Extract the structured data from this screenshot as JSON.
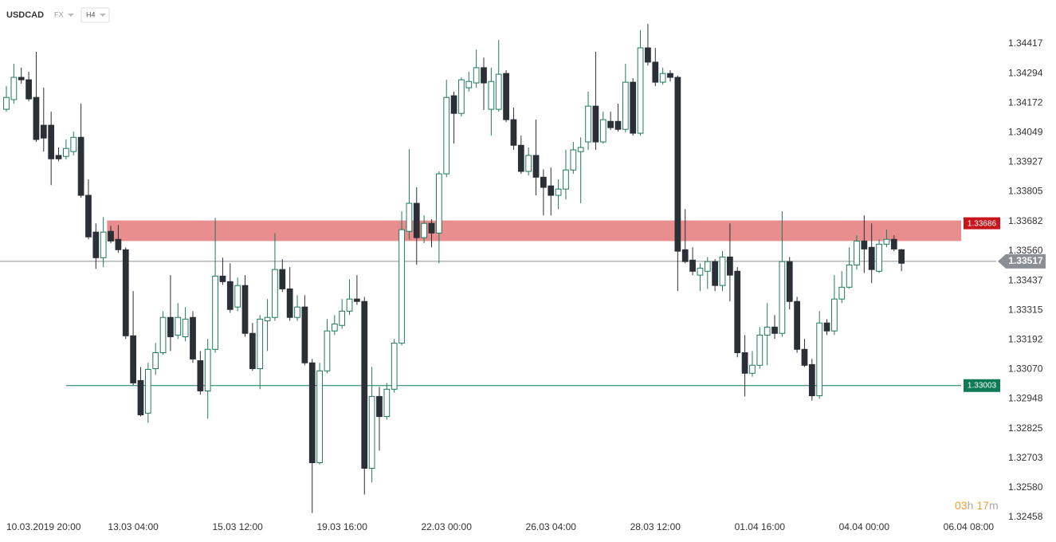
{
  "header": {
    "symbol": "USDCAD",
    "market": "FX",
    "timeframe": "H4"
  },
  "timer": {
    "hours": "03",
    "hours_unit": "h",
    "minutes": "17",
    "minutes_unit": "m"
  },
  "chart_data": {
    "type": "candlestick",
    "bull_color": "#1f7a5c",
    "bear_color": "#2b2f36",
    "xlim": [
      -0.855,
      132.7
    ],
    "xticks": [
      {
        "value": 3,
        "label": "10.03.2019  20:00"
      },
      {
        "value": 17,
        "label": "13.03  04:00"
      },
      {
        "value": 31,
        "label": "15.03  12:00"
      },
      {
        "value": 45,
        "label": "19.03  16:00"
      },
      {
        "value": 59,
        "label": "22.03  00:00"
      },
      {
        "value": 73,
        "label": "26.03  04:00"
      },
      {
        "value": 87,
        "label": "28.03  12:00"
      },
      {
        "value": 101,
        "label": "01.04  16:00"
      },
      {
        "value": 115,
        "label": "04.04  00:00"
      },
      {
        "value": 129,
        "label": "06.04  08:00"
      }
    ],
    "ylim": [
      1.32356,
      1.34598
    ],
    "yticks": [
      1.34417,
      1.34294,
      1.34172,
      1.34049,
      1.33927,
      1.33805,
      1.33682,
      {
        "value": 1.3356,
        "label": "1.33560"
      },
      1.33437,
      1.33315,
      1.33192,
      {
        "value": 1.3307,
        "label": "1.33070"
      },
      1.32948,
      1.32825,
      1.32703,
      {
        "value": 1.3258,
        "label": "1.32580"
      },
      1.32458
    ],
    "grid": false,
    "open": [
      1.34146,
      1.34186,
      1.34278,
      1.34268,
      1.34195,
      1.3408,
      1.3408,
      1.33955,
      1.33951,
      1.33971,
      1.3403,
      1.3379,
      1.33638,
      1.33532,
      1.33641,
      1.33608,
      1.33565,
      1.33209,
      1.33024,
      1.32889,
      1.33073,
      1.33139,
      1.33285,
      1.33212,
      1.33205,
      1.33285,
      1.33106,
      1.32981,
      1.33153,
      1.33456,
      1.33433,
      1.33328,
      1.33417,
      1.33219,
      1.33073,
      1.33271,
      1.33285,
      1.33483,
      1.33403,
      1.33285,
      1.33328,
      1.33097,
      1.32684,
      1.33064,
      1.33229,
      1.33252,
      1.33311,
      1.33361,
      1.33351,
      1.32661,
      1.32958,
      1.32875,
      1.32988,
      1.33179,
      1.33641,
      1.33757,
      1.33615,
      1.33674,
      1.33634,
      1.33879,
      1.34202,
      1.34129,
      1.34235,
      1.34255,
      1.34318,
      1.34146,
      1.34146,
      1.34294,
      1.34103,
      1.33997,
      1.33889,
      1.33955,
      1.33865,
      1.33829,
      1.3379,
      1.33816,
      1.33895,
      1.33971,
      1.34011,
      1.34159,
      1.34011,
      1.34096,
      1.34096,
      1.34063,
      1.34258,
      1.34047,
      1.344,
      1.34341,
      1.34258,
      1.34294,
      1.34278,
      1.33565,
      1.33522,
      1.3346,
      1.33476,
      1.33516,
      1.33417,
      1.33535,
      1.33476,
      1.33139,
      1.33054,
      1.33087,
      1.33212,
      1.33245,
      1.33219,
      1.33516,
      1.33351,
      1.33153,
      1.3309,
      1.32961,
      1.33262,
      1.33229,
      1.33361,
      1.3341,
      1.33502,
      1.33601,
      1.33575,
      1.33476,
      1.33588,
      1.33608,
      1.33565
    ],
    "high": [
      1.34242,
      1.34334,
      1.34318,
      1.34301,
      1.34384,
      1.34235,
      1.34136,
      1.33988,
      1.34021,
      1.34054,
      1.34169,
      1.33856,
      1.33674,
      1.337,
      1.33664,
      1.33667,
      1.33575,
      1.33394,
      1.3308,
      1.33097,
      1.33179,
      1.33311,
      1.3346,
      1.33344,
      1.33328,
      1.33311,
      1.33146,
      1.33196,
      1.33697,
      1.33532,
      1.33509,
      1.3345,
      1.3346,
      1.33262,
      1.33295,
      1.33361,
      1.33634,
      1.33526,
      1.33493,
      1.33377,
      1.33377,
      1.33113,
      1.33097,
      1.33278,
      1.33295,
      1.33361,
      1.33443,
      1.3346,
      1.3337,
      1.3308,
      1.32998,
      1.33014,
      1.33196,
      1.33724,
      1.33981,
      1.33823,
      1.33707,
      1.33691,
      1.33889,
      1.34268,
      1.34219,
      1.34278,
      1.34301,
      1.34393,
      1.3436,
      1.34318,
      1.34433,
      1.34308,
      1.34153,
      1.34037,
      1.33988,
      1.34103,
      1.33898,
      1.33905,
      1.33856,
      1.33978,
      1.34011,
      1.3403,
      1.34219,
      1.34384,
      1.34136,
      1.34136,
      1.34169,
      1.34334,
      1.34275,
      1.34473,
      1.34499,
      1.344,
      1.34318,
      1.34308,
      1.34285,
      1.33733,
      1.33575,
      1.33509,
      1.33535,
      1.33526,
      1.33559,
      1.33674,
      1.33493,
      1.33212,
      1.33146,
      1.33245,
      1.33344,
      1.33295,
      1.33724,
      1.33535,
      1.3337,
      1.33196,
      1.33113,
      1.33311,
      1.33278,
      1.3346,
      1.33476,
      1.33575,
      1.33625,
      1.33707,
      1.33674,
      1.33608,
      1.33648,
      1.33625,
      1.33568
    ],
    "low": [
      1.34136,
      1.34169,
      1.34252,
      1.34179,
      1.34011,
      1.33971,
      1.33832,
      1.33931,
      1.33938,
      1.33955,
      1.3378,
      1.33608,
      1.33486,
      1.33493,
      1.33592,
      1.33552,
      1.33196,
      1.33004,
      1.32875,
      1.32849,
      1.33047,
      1.3313,
      1.33146,
      1.33196,
      1.33186,
      1.33097,
      1.32965,
      1.32866,
      1.33139,
      1.3342,
      1.33304,
      1.33311,
      1.33205,
      1.33064,
      1.32988,
      1.33146,
      1.33271,
      1.3339,
      1.33271,
      1.33271,
      1.33087,
      1.32476,
      1.32677,
      1.33054,
      1.33212,
      1.33238,
      1.33295,
      1.33337,
      1.32552,
      1.32602,
      1.32734,
      1.32862,
      1.32974,
      1.33169,
      1.33608,
      1.33502,
      1.33592,
      1.33575,
      1.33509,
      1.33865,
      1.34004,
      1.34116,
      1.34219,
      1.34235,
      1.34143,
      1.34037,
      1.34136,
      1.34093,
      1.33978,
      1.33879,
      1.33872,
      1.3379,
      1.33707,
      1.33707,
      1.33733,
      1.33773,
      1.33879,
      1.33757,
      1.33978,
      1.33978,
      1.34004,
      1.3406,
      1.34054,
      1.3405,
      1.34037,
      1.34037,
      1.34327,
      1.34242,
      1.34248,
      1.34261,
      1.33394,
      1.33509,
      1.3346,
      1.33394,
      1.33403,
      1.33394,
      1.33394,
      1.33351,
      1.3312,
      1.32958,
      1.3304,
      1.33073,
      1.33087,
      1.33196,
      1.33205,
      1.33318,
      1.33139,
      1.3308,
      1.32941,
      1.32948,
      1.33212,
      1.33212,
      1.33344,
      1.33403,
      1.33483,
      1.33469,
      1.33427,
      1.33469,
      1.33575,
      1.33559,
      1.33476
    ],
    "close": [
      1.34195,
      1.34278,
      1.34268,
      1.34189,
      1.34021,
      1.34027,
      1.33941,
      1.33941,
      1.33984,
      1.3403,
      1.3379,
      1.33618,
      1.33532,
      1.33638,
      1.33601,
      1.33565,
      1.33209,
      1.33014,
      1.32882,
      1.3307,
      1.33139,
      1.33285,
      1.33205,
      1.33285,
      1.33278,
      1.33113,
      1.32981,
      1.33153,
      1.33456,
      1.33433,
      1.33318,
      1.33417,
      1.33219,
      1.33073,
      1.33278,
      1.33285,
      1.33483,
      1.33403,
      1.33285,
      1.33328,
      1.33097,
      1.32684,
      1.33064,
      1.33229,
      1.33258,
      1.33311,
      1.33361,
      1.33351,
      1.32661,
      1.32958,
      1.32875,
      1.32988,
      1.33179,
      1.33648,
      1.33757,
      1.33615,
      1.33674,
      1.33634,
      1.33879,
      1.34195,
      1.34129,
      1.34268,
      1.34261,
      1.34318,
      1.34255,
      1.34261,
      1.34291,
      1.34103,
      1.33997,
      1.33889,
      1.33955,
      1.33865,
      1.33823,
      1.3379,
      1.33816,
      1.33895,
      1.33978,
      1.33988,
      1.34159,
      1.34011,
      1.34103,
      1.3407,
      1.34063,
      1.34258,
      1.34047,
      1.344,
      1.34341,
      1.34258,
      1.34294,
      1.34278,
      1.33559,
      1.33516,
      1.33476,
      1.33489,
      1.33516,
      1.33417,
      1.33535,
      1.3346,
      1.33139,
      1.33054,
      1.33087,
      1.33212,
      1.33245,
      1.33219,
      1.33516,
      1.33351,
      1.33153,
      1.33087,
      1.32961,
      1.33262,
      1.33229,
      1.33361,
      1.3341,
      1.33502,
      1.33601,
      1.33568,
      1.33483,
      1.33588,
      1.33608,
      1.33568,
      1.33509
    ],
    "zone": {
      "top": 1.33686,
      "bottom": 1.33601,
      "start": 13.5,
      "end": 128,
      "color": "#e57a7a",
      "label_color": "#c8161d"
    },
    "support": {
      "value": 1.33003,
      "start": 8,
      "end": 128,
      "color": "#0f7a55"
    },
    "current_price": {
      "value": 1.33517,
      "color": "#8a8f96"
    }
  }
}
